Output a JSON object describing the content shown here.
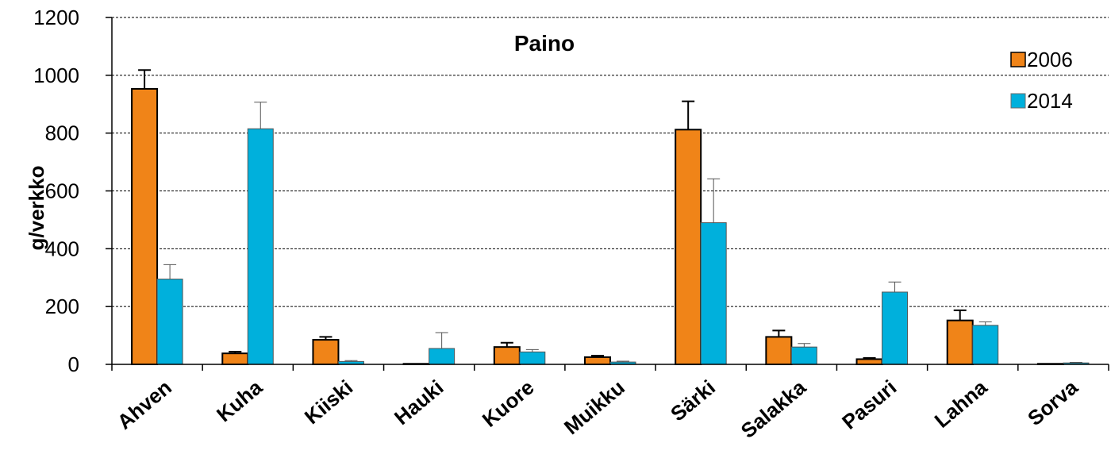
{
  "chart_data": {
    "type": "bar",
    "title": "Paino",
    "ylabel": "g/verkko",
    "xlabel": "",
    "ylim": [
      0,
      1200
    ],
    "yticks": [
      "0",
      "200",
      "400",
      "600",
      "800",
      "1000",
      "1200"
    ],
    "grid": "horizontal dashed",
    "legend_position": "top-right",
    "categories": [
      "Ahven",
      "Kuha",
      "Kiiski",
      "Hauki",
      "Kuore",
      "Muikku",
      "Särki",
      "Salakka",
      "Pasuri",
      "Lahna",
      "Sorva"
    ],
    "series": [
      {
        "name": "2006",
        "color": "#F08418",
        "values": [
          953,
          38,
          85,
          2,
          60,
          25,
          812,
          95,
          18,
          152,
          2
        ],
        "errors": [
          65,
          6,
          10,
          0,
          15,
          5,
          98,
          22,
          4,
          35,
          0
        ]
      },
      {
        "name": "2014",
        "color": "#00B0DC",
        "values": [
          295,
          815,
          10,
          55,
          43,
          8,
          490,
          60,
          250,
          135,
          5
        ],
        "errors": [
          50,
          92,
          3,
          55,
          8,
          3,
          152,
          12,
          35,
          12,
          2
        ]
      }
    ]
  }
}
